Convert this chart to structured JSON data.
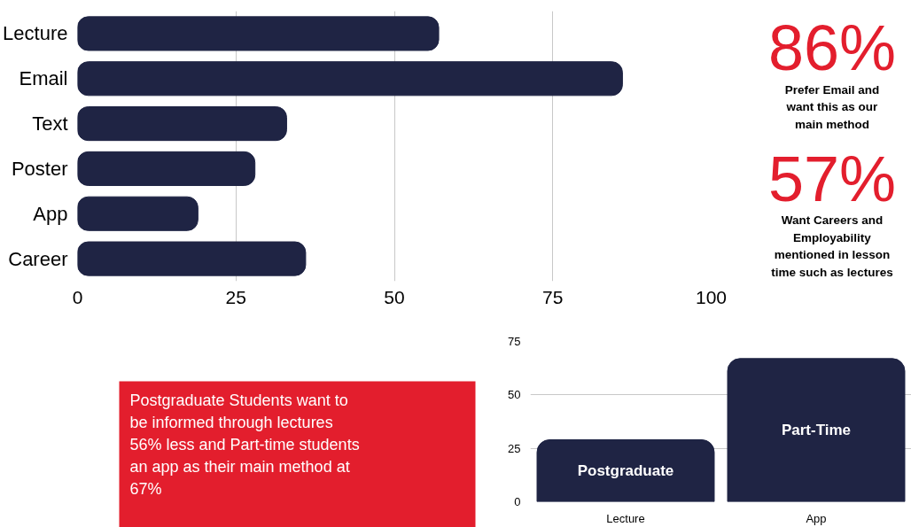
{
  "chart_data": [
    {
      "type": "bar",
      "orientation": "horizontal",
      "categories": [
        "Lecture",
        "Email",
        "Text",
        "Poster",
        "App",
        "Career"
      ],
      "values": [
        57,
        86,
        33,
        28,
        19,
        36
      ],
      "color": "#1f2444",
      "xlim": [
        0,
        100
      ],
      "xticks": [
        0,
        25,
        50,
        75,
        100
      ],
      "grid": "x",
      "annotations": [
        "Postgraduate Students want to be informed through lectures 56% less and Part-time students an app as their main method at 67%"
      ]
    },
    {
      "type": "other",
      "annotations": [
        "86%",
        "Prefer Email and want this as our main method",
        "57%",
        "Want Careers and Employability mentioned in lesson time such as lectures"
      ]
    },
    {
      "type": "bar",
      "categories": [
        "Lecture",
        "App"
      ],
      "series": [
        {
          "name": "Postgraduate",
          "color": "#1f2444",
          "values": [
            29,
            null
          ]
        },
        {
          "name": "Part-Time",
          "color": "#1f2444",
          "values": [
            null,
            67
          ]
        }
      ],
      "ylim": [
        0,
        75
      ],
      "yticks": [
        0,
        25,
        50,
        75
      ],
      "grid": "y"
    }
  ]
}
